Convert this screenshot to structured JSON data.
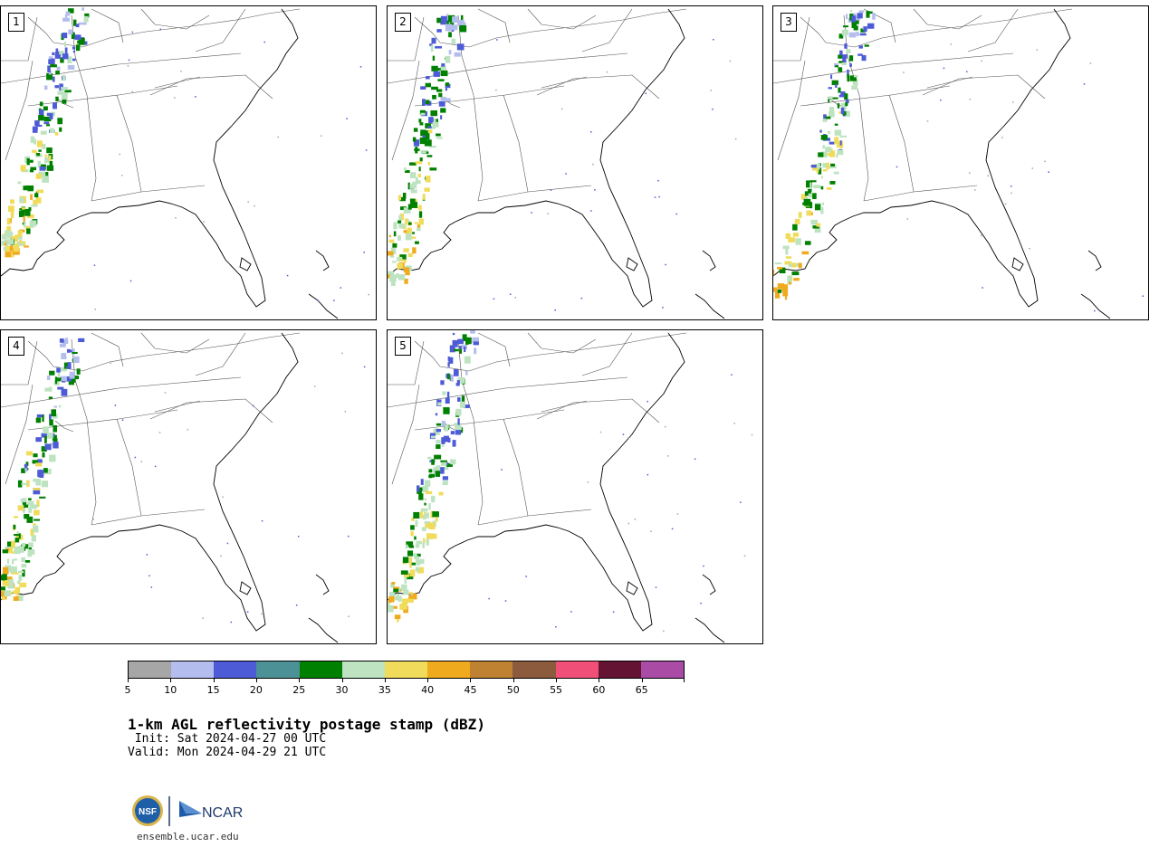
{
  "panels": [
    {
      "label": "1"
    },
    {
      "label": "2"
    },
    {
      "label": "3"
    },
    {
      "label": "4"
    },
    {
      "label": "5"
    }
  ],
  "colorbar": {
    "colors": [
      "#a6a6a6",
      "#b3bdee",
      "#4d5bd6",
      "#4c9196",
      "#008000",
      "#bde3c1",
      "#f0dc5a",
      "#f0aa1e",
      "#be8232",
      "#8c5a3c",
      "#f05078",
      "#641432",
      "#aa4ba5"
    ],
    "ticks": [
      "5",
      "10",
      "15",
      "20",
      "25",
      "30",
      "35",
      "40",
      "45",
      "50",
      "55",
      "60",
      "65"
    ]
  },
  "title": "1-km AGL reflectivity postage stamp (dBZ)",
  "init": " Init: Sat 2024-04-27 00 UTC",
  "valid": "Valid: Mon 2024-04-29 21 UTC",
  "logos": {
    "nsf": "NSF",
    "ncar": "NCAR"
  },
  "website": "ensemble.ucar.edu"
}
